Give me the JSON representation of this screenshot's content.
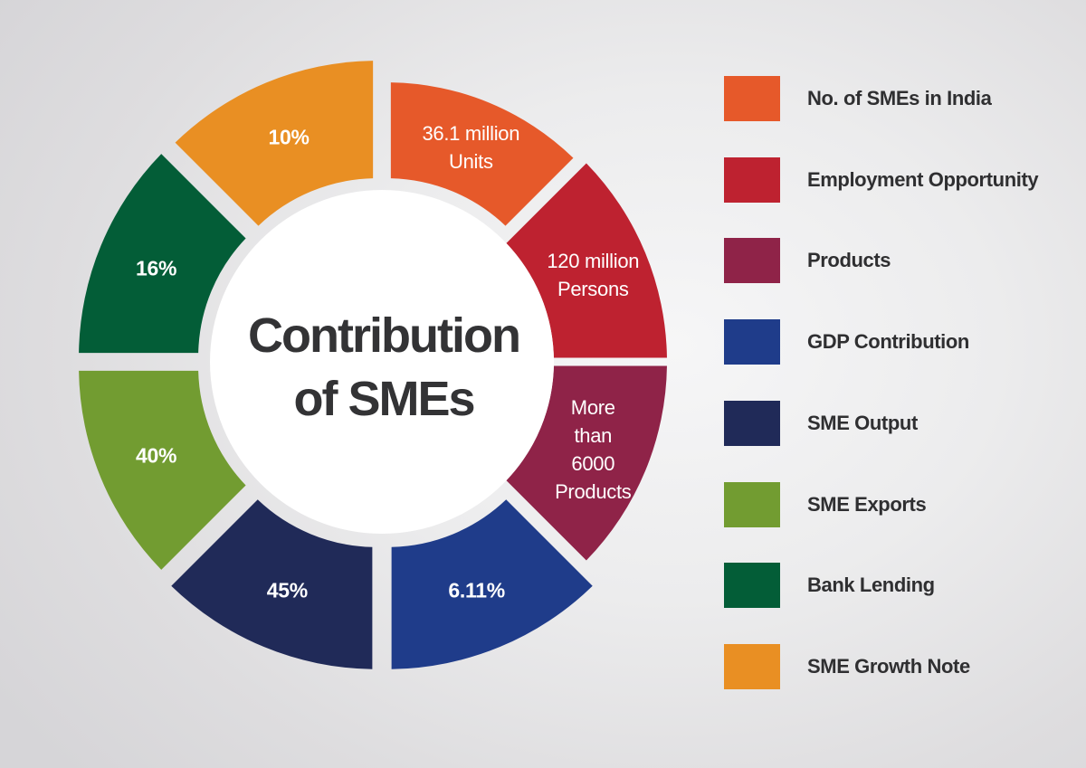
{
  "chart_data": {
    "type": "pie",
    "variant": "exploded-donut",
    "title": "Contribution of SMEs",
    "center": {
      "x": 422,
      "y": 400
    },
    "inner_radius": 190,
    "legend_position": "right",
    "series": [
      {
        "name": "No. of SMEs in India",
        "label_lines": [
          "36.1 million",
          "Units"
        ],
        "value_text": "36.1 million Units",
        "color": "#e6592a",
        "start": 0,
        "end": 45,
        "outer": 296,
        "offset": 14
      },
      {
        "name": "Employment Opportunity",
        "label_lines": [
          "120 million",
          "Persons"
        ],
        "value_text": "120 million Persons",
        "color": "#be2230",
        "start": 45,
        "end": 90,
        "outer": 315,
        "offset": 0
      },
      {
        "name": "Products",
        "label_lines": [
          "More",
          "than",
          "6000",
          "Products"
        ],
        "value_text": "More than 6000 Products",
        "color": "#8f2348",
        "start": 90,
        "end": 135,
        "outer": 315,
        "offset": 0
      },
      {
        "name": "GDP Contribution",
        "label_lines": [
          "6.11%"
        ],
        "value_text": "6.11%",
        "color": "#1f3c8a",
        "start": 135,
        "end": 180,
        "outer": 325,
        "offset": 16
      },
      {
        "name": "SME Output",
        "label_lines": [
          "45%"
        ],
        "value_text": "45%",
        "color": "#202a58",
        "start": 180,
        "end": 225,
        "outer": 325,
        "offset": 16
      },
      {
        "name": "SME Exports",
        "label_lines": [
          "40%"
        ],
        "value_text": "40%",
        "color": "#729c31",
        "start": 225,
        "end": 270,
        "outer": 322,
        "offset": 14
      },
      {
        "name": "Bank Lending",
        "label_lines": [
          "16%"
        ],
        "value_text": "16%",
        "color": "#035d37",
        "start": 270,
        "end": 315,
        "outer": 322,
        "offset": 14
      },
      {
        "name": "SME Growth Note",
        "label_lines": [
          "10%"
        ],
        "value_text": "10%",
        "color": "#e98f23",
        "start": 315,
        "end": 360,
        "outer": 320,
        "offset": 14
      }
    ]
  },
  "center_title": {
    "line1": "Contribution",
    "line2": "of SMEs"
  },
  "legend": {
    "items": [
      {
        "label": "No. of SMEs in India",
        "color": "#e6592a"
      },
      {
        "label": "Employment Opportunity",
        "color": "#be2230"
      },
      {
        "label": "Products",
        "color": "#8f2348"
      },
      {
        "label": "GDP Contribution",
        "color": "#1f3c8a"
      },
      {
        "label": "SME Output",
        "color": "#202a58"
      },
      {
        "label": "SME Exports",
        "color": "#729c31"
      },
      {
        "label": "Bank Lending",
        "color": "#035d37"
      },
      {
        "label": "SME Growth Note",
        "color": "#e98f23"
      }
    ]
  }
}
